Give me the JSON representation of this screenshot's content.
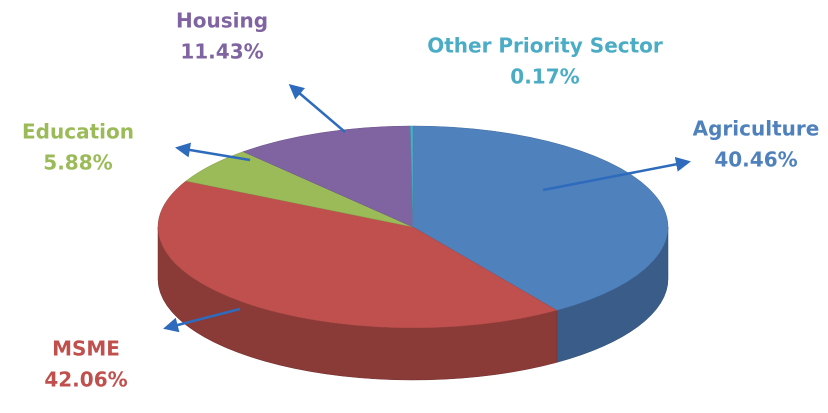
{
  "chart_data": {
    "type": "pie",
    "categories": [
      "Agriculture",
      "MSME",
      "Education",
      "Housing",
      "Other Priority Sector"
    ],
    "values": [
      40.46,
      42.06,
      5.88,
      11.43,
      0.17
    ],
    "value_labels": [
      "40.46%",
      "42.06%",
      "5.88%",
      "11.43%",
      "0.17%"
    ],
    "colors": [
      "#4f81bd",
      "#c0504d",
      "#9bbb59",
      "#8064a2",
      "#4bacc6"
    ]
  }
}
